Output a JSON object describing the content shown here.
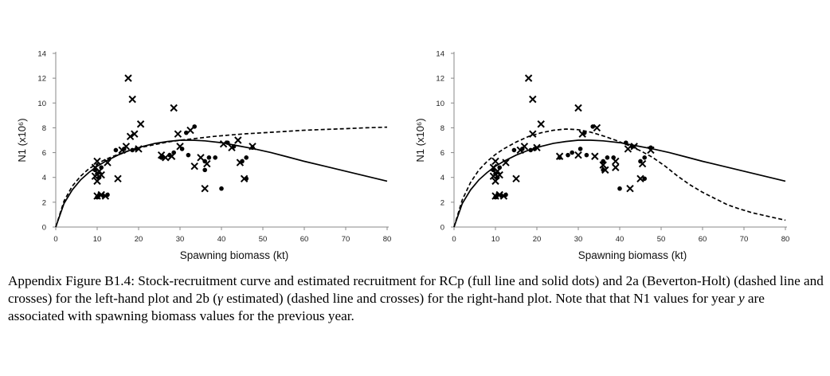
{
  "chart_data": [
    {
      "type": "scatter",
      "xlabel": "Spawning biomass (kt)",
      "ylabel": "N1 (x10⁶)",
      "xlim": [
        0,
        80
      ],
      "ylim": [
        0,
        14
      ],
      "xticks": [
        "0",
        "10",
        "20",
        "30",
        "40",
        "50",
        "60",
        "70",
        "80"
      ],
      "yticks": [
        "0",
        "2",
        "4",
        "6",
        "8",
        "10",
        "12",
        "14"
      ],
      "grid": false,
      "lines": [
        {
          "style": "solid",
          "x": [
            0,
            2,
            4,
            6,
            8,
            10,
            12,
            15,
            18,
            21,
            24,
            27,
            30,
            33,
            36,
            40,
            44,
            48,
            52,
            56,
            60,
            65,
            70,
            75,
            80
          ],
          "y": [
            0,
            1.9,
            3.0,
            3.8,
            4.4,
            4.9,
            5.3,
            5.8,
            6.2,
            6.5,
            6.75,
            6.9,
            7.0,
            7.0,
            6.95,
            6.8,
            6.55,
            6.3,
            6.0,
            5.65,
            5.3,
            4.9,
            4.5,
            4.1,
            3.7
          ]
        },
        {
          "style": "dashed",
          "x": [
            0,
            2,
            4,
            6,
            8,
            10,
            12,
            15,
            18,
            21,
            24,
            27,
            30,
            34,
            38,
            42,
            46,
            50,
            55,
            60,
            65,
            70,
            75,
            80
          ],
          "y": [
            0,
            2.1,
            3.3,
            4.1,
            4.7,
            5.1,
            5.45,
            5.85,
            6.2,
            6.45,
            6.65,
            6.85,
            7.0,
            7.15,
            7.3,
            7.42,
            7.52,
            7.6,
            7.7,
            7.8,
            7.87,
            7.93,
            8.0,
            8.05
          ]
        }
      ],
      "dots": [
        [
          9.5,
          4.6
        ],
        [
          10,
          4.3
        ],
        [
          10.5,
          4.0
        ],
        [
          11,
          4.8
        ],
        [
          10,
          2.4
        ],
        [
          10.5,
          2.6
        ],
        [
          11.5,
          2.5
        ],
        [
          12.5,
          2.6
        ],
        [
          14.5,
          6.2
        ],
        [
          16.5,
          6.3
        ],
        [
          18.5,
          6.2
        ],
        [
          19.5,
          6.3
        ],
        [
          25.5,
          5.6
        ],
        [
          27.5,
          5.8
        ],
        [
          28.5,
          6.0
        ],
        [
          30.5,
          6.3
        ],
        [
          31.5,
          7.6
        ],
        [
          33.5,
          8.1
        ],
        [
          32,
          5.8
        ],
        [
          36,
          5.3
        ],
        [
          37,
          5.6
        ],
        [
          38.5,
          5.6
        ],
        [
          40,
          3.1
        ],
        [
          41.5,
          6.8
        ],
        [
          43,
          6.5
        ],
        [
          45,
          5.3
        ],
        [
          46,
          5.6
        ],
        [
          47.5,
          6.4
        ],
        [
          46,
          3.9
        ],
        [
          36,
          4.6
        ]
      ],
      "crosses": [
        [
          9.5,
          4.8
        ],
        [
          10,
          5.3
        ],
        [
          10.5,
          4.5
        ],
        [
          9.5,
          4.1
        ],
        [
          10,
          3.7
        ],
        [
          11,
          4.2
        ],
        [
          10,
          2.5
        ],
        [
          11,
          2.6
        ],
        [
          12,
          2.5
        ],
        [
          12.5,
          5.2
        ],
        [
          15,
          3.9
        ],
        [
          16,
          6.2
        ],
        [
          17,
          6.5
        ],
        [
          17.5,
          12.0
        ],
        [
          18.5,
          10.3
        ],
        [
          18,
          7.3
        ],
        [
          19,
          7.5
        ],
        [
          20,
          6.3
        ],
        [
          20.5,
          8.3
        ],
        [
          25.5,
          5.8
        ],
        [
          26.5,
          5.6
        ],
        [
          28,
          5.7
        ],
        [
          28.5,
          9.6
        ],
        [
          29.5,
          7.5
        ],
        [
          30,
          6.5
        ],
        [
          32.5,
          7.8
        ],
        [
          33.5,
          4.9
        ],
        [
          35,
          5.6
        ],
        [
          36,
          3.1
        ],
        [
          36.5,
          5.1
        ],
        [
          40.5,
          6.7
        ],
        [
          42.5,
          6.4
        ],
        [
          44,
          7.0
        ],
        [
          44.5,
          5.2
        ],
        [
          45.5,
          3.9
        ],
        [
          47.5,
          6.5
        ]
      ]
    },
    {
      "type": "scatter",
      "xlabel": "Spawning biomass (kt)",
      "ylabel": "N1 (x10⁶)",
      "xlim": [
        0,
        80
      ],
      "ylim": [
        0,
        14
      ],
      "xticks": [
        "0",
        "10",
        "20",
        "30",
        "40",
        "50",
        "60",
        "70",
        "80"
      ],
      "yticks": [
        "0",
        "2",
        "4",
        "6",
        "8",
        "10",
        "12",
        "14"
      ],
      "grid": false,
      "lines": [
        {
          "style": "solid",
          "x": [
            0,
            2,
            4,
            6,
            8,
            10,
            12,
            15,
            18,
            21,
            24,
            27,
            30,
            33,
            36,
            40,
            44,
            48,
            52,
            56,
            60,
            65,
            70,
            75,
            80
          ],
          "y": [
            0,
            1.9,
            3.0,
            3.8,
            4.4,
            4.9,
            5.3,
            5.8,
            6.2,
            6.5,
            6.75,
            6.9,
            7.0,
            7.0,
            6.95,
            6.8,
            6.55,
            6.3,
            6.0,
            5.65,
            5.3,
            4.9,
            4.5,
            4.1,
            3.7
          ]
        },
        {
          "style": "dashed",
          "x": [
            0,
            2,
            4,
            6,
            8,
            10,
            12,
            15,
            18,
            21,
            24,
            27,
            30,
            33,
            36,
            39,
            42,
            45,
            48,
            51,
            54,
            57,
            60,
            63,
            66,
            69,
            72,
            76,
            80
          ],
          "y": [
            0,
            2.2,
            3.6,
            4.6,
            5.3,
            5.85,
            6.3,
            6.85,
            7.3,
            7.6,
            7.8,
            7.9,
            7.85,
            7.65,
            7.35,
            7.0,
            6.6,
            6.15,
            5.6,
            4.9,
            4.1,
            3.4,
            2.8,
            2.3,
            1.8,
            1.45,
            1.15,
            0.85,
            0.55
          ]
        }
      ],
      "dots": [
        [
          9.5,
          4.6
        ],
        [
          10,
          4.3
        ],
        [
          10.5,
          4.0
        ],
        [
          11,
          4.8
        ],
        [
          10,
          2.4
        ],
        [
          10.5,
          2.6
        ],
        [
          11.5,
          2.5
        ],
        [
          12.5,
          2.6
        ],
        [
          14.5,
          6.2
        ],
        [
          16.5,
          6.3
        ],
        [
          18.5,
          6.2
        ],
        [
          19.5,
          6.3
        ],
        [
          25.5,
          5.6
        ],
        [
          27.5,
          5.8
        ],
        [
          28.5,
          6.0
        ],
        [
          30.5,
          6.3
        ],
        [
          31.5,
          7.6
        ],
        [
          33.5,
          8.1
        ],
        [
          32,
          5.8
        ],
        [
          36,
          5.3
        ],
        [
          37,
          5.6
        ],
        [
          38.5,
          5.6
        ],
        [
          40,
          3.1
        ],
        [
          41.5,
          6.8
        ],
        [
          43,
          6.5
        ],
        [
          45,
          5.3
        ],
        [
          46,
          5.6
        ],
        [
          47.5,
          6.4
        ],
        [
          46,
          3.9
        ],
        [
          36,
          4.6
        ]
      ],
      "crosses": [
        [
          9.5,
          4.8
        ],
        [
          10,
          5.3
        ],
        [
          10.5,
          4.5
        ],
        [
          9.5,
          4.1
        ],
        [
          10,
          3.7
        ],
        [
          11,
          4.2
        ],
        [
          10,
          2.5
        ],
        [
          11,
          2.6
        ],
        [
          12,
          2.5
        ],
        [
          12.5,
          5.2
        ],
        [
          15,
          3.9
        ],
        [
          16,
          6.2
        ],
        [
          17,
          6.5
        ],
        [
          18,
          12.0
        ],
        [
          19,
          10.3
        ],
        [
          19,
          7.5
        ],
        [
          20,
          6.4
        ],
        [
          21,
          8.3
        ],
        [
          25.5,
          5.7
        ],
        [
          30,
          9.6
        ],
        [
          31,
          7.5
        ],
        [
          30,
          5.8
        ],
        [
          34.5,
          8.0
        ],
        [
          34,
          5.7
        ],
        [
          36,
          5.0
        ],
        [
          36.5,
          4.6
        ],
        [
          39,
          5.3
        ],
        [
          39,
          4.8
        ],
        [
          42.5,
          3.1
        ],
        [
          42,
          6.3
        ],
        [
          43.5,
          6.5
        ],
        [
          45,
          3.9
        ],
        [
          45.5,
          5.1
        ],
        [
          47.5,
          6.2
        ]
      ]
    }
  ],
  "caption": {
    "p1": "Appendix Figure B1.4: Stock-recruitment curve and estimated recruitment for RCp (full line and solid dots) and 2a (Beverton-Holt) (dashed line and crosses) for the left-hand plot and 2b (",
    "gamma": "γ",
    "p2": " estimated) (dashed line and crosses) for the right-hand plot. Note that that N1 values for year ",
    "yvar": "y",
    "p3": " are associated with spawning biomass values for the previous year."
  }
}
